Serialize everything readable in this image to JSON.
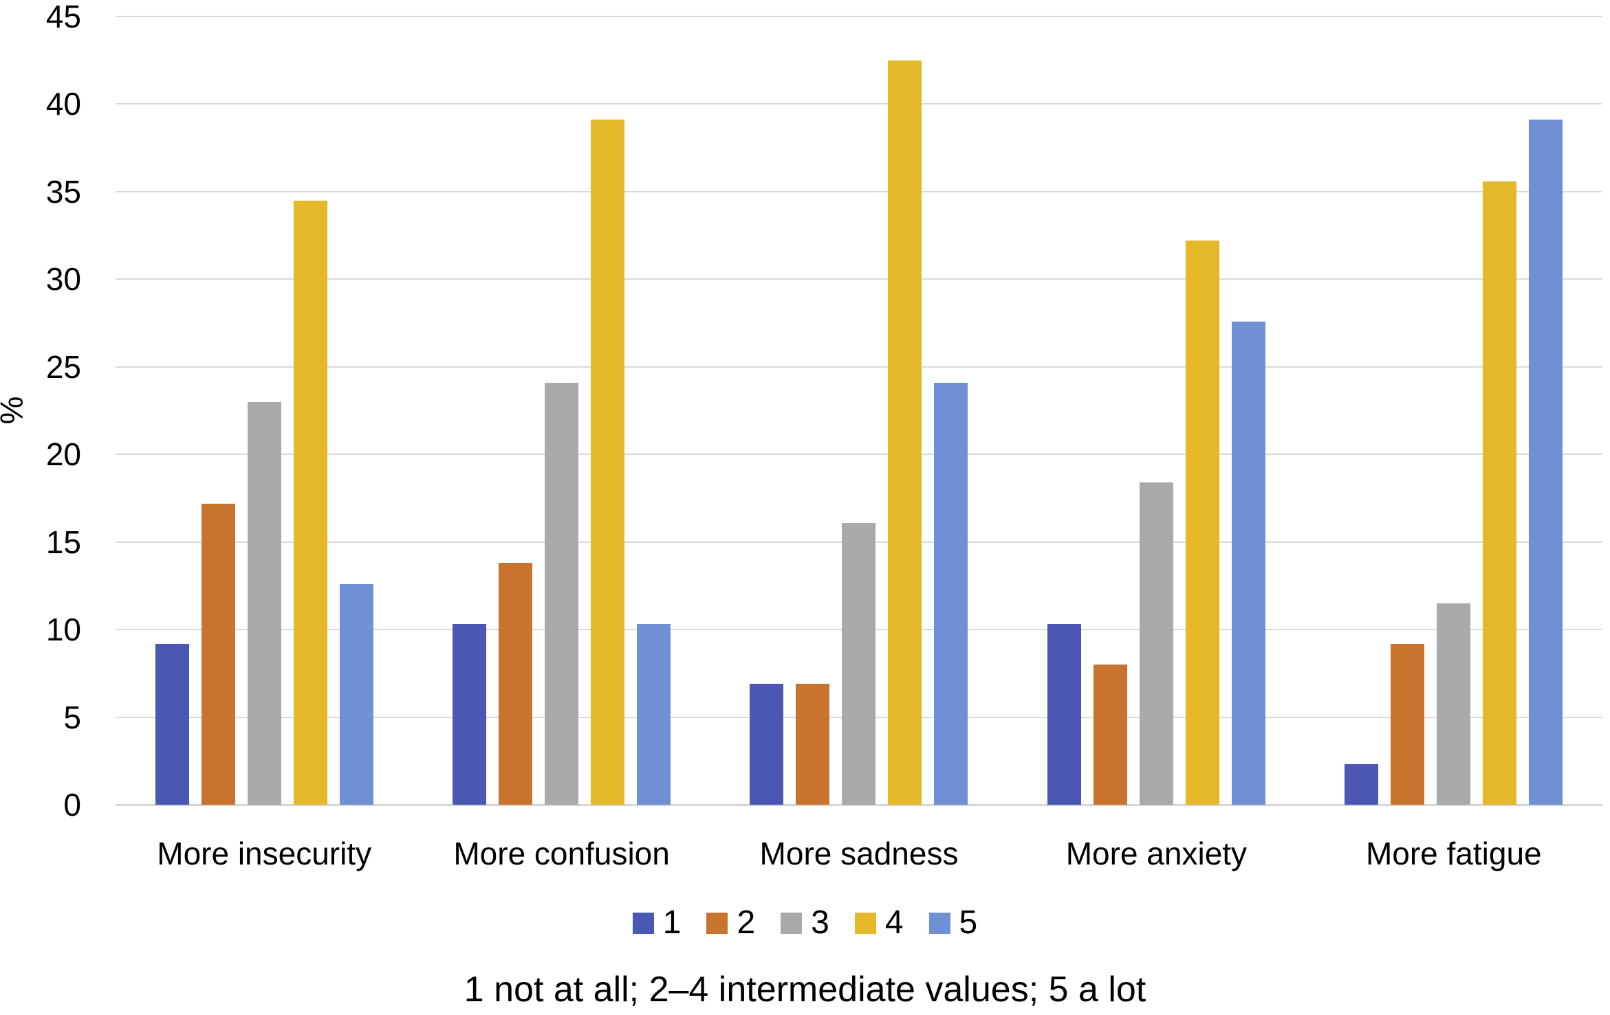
{
  "chart_data": {
    "type": "bar",
    "title": "",
    "categories": [
      "More insecurity",
      "More confusion",
      "More sadness",
      "More anxiety",
      "More fatigue"
    ],
    "series": [
      {
        "name": "1",
        "color": "#4a58b3",
        "values": [
          9.2,
          10.3,
          6.9,
          10.3,
          2.3
        ]
      },
      {
        "name": "2",
        "color": "#c8732e",
        "values": [
          17.2,
          13.8,
          6.9,
          8.0,
          9.2
        ]
      },
      {
        "name": "3",
        "color": "#a9a9a9",
        "values": [
          23.0,
          24.1,
          16.1,
          18.4,
          11.5
        ]
      },
      {
        "name": "4",
        "color": "#e4b829",
        "values": [
          34.5,
          39.1,
          42.5,
          32.2,
          35.6
        ]
      },
      {
        "name": "5",
        "color": "#6f90d5",
        "values": [
          12.6,
          10.3,
          24.1,
          27.6,
          39.1
        ]
      }
    ],
    "xlabel": "",
    "ylabel": "%",
    "ylim": [
      0,
      45
    ],
    "ytick_step": 5,
    "grid": true,
    "legend_position": "bottom",
    "caption": "1 not at all; 2–4 intermediate values; 5 a lot",
    "gridline_color": "#d9d9d9",
    "axis_line_color": "#d6d6d6",
    "background": "#ffffff",
    "text_color": "#000000"
  }
}
